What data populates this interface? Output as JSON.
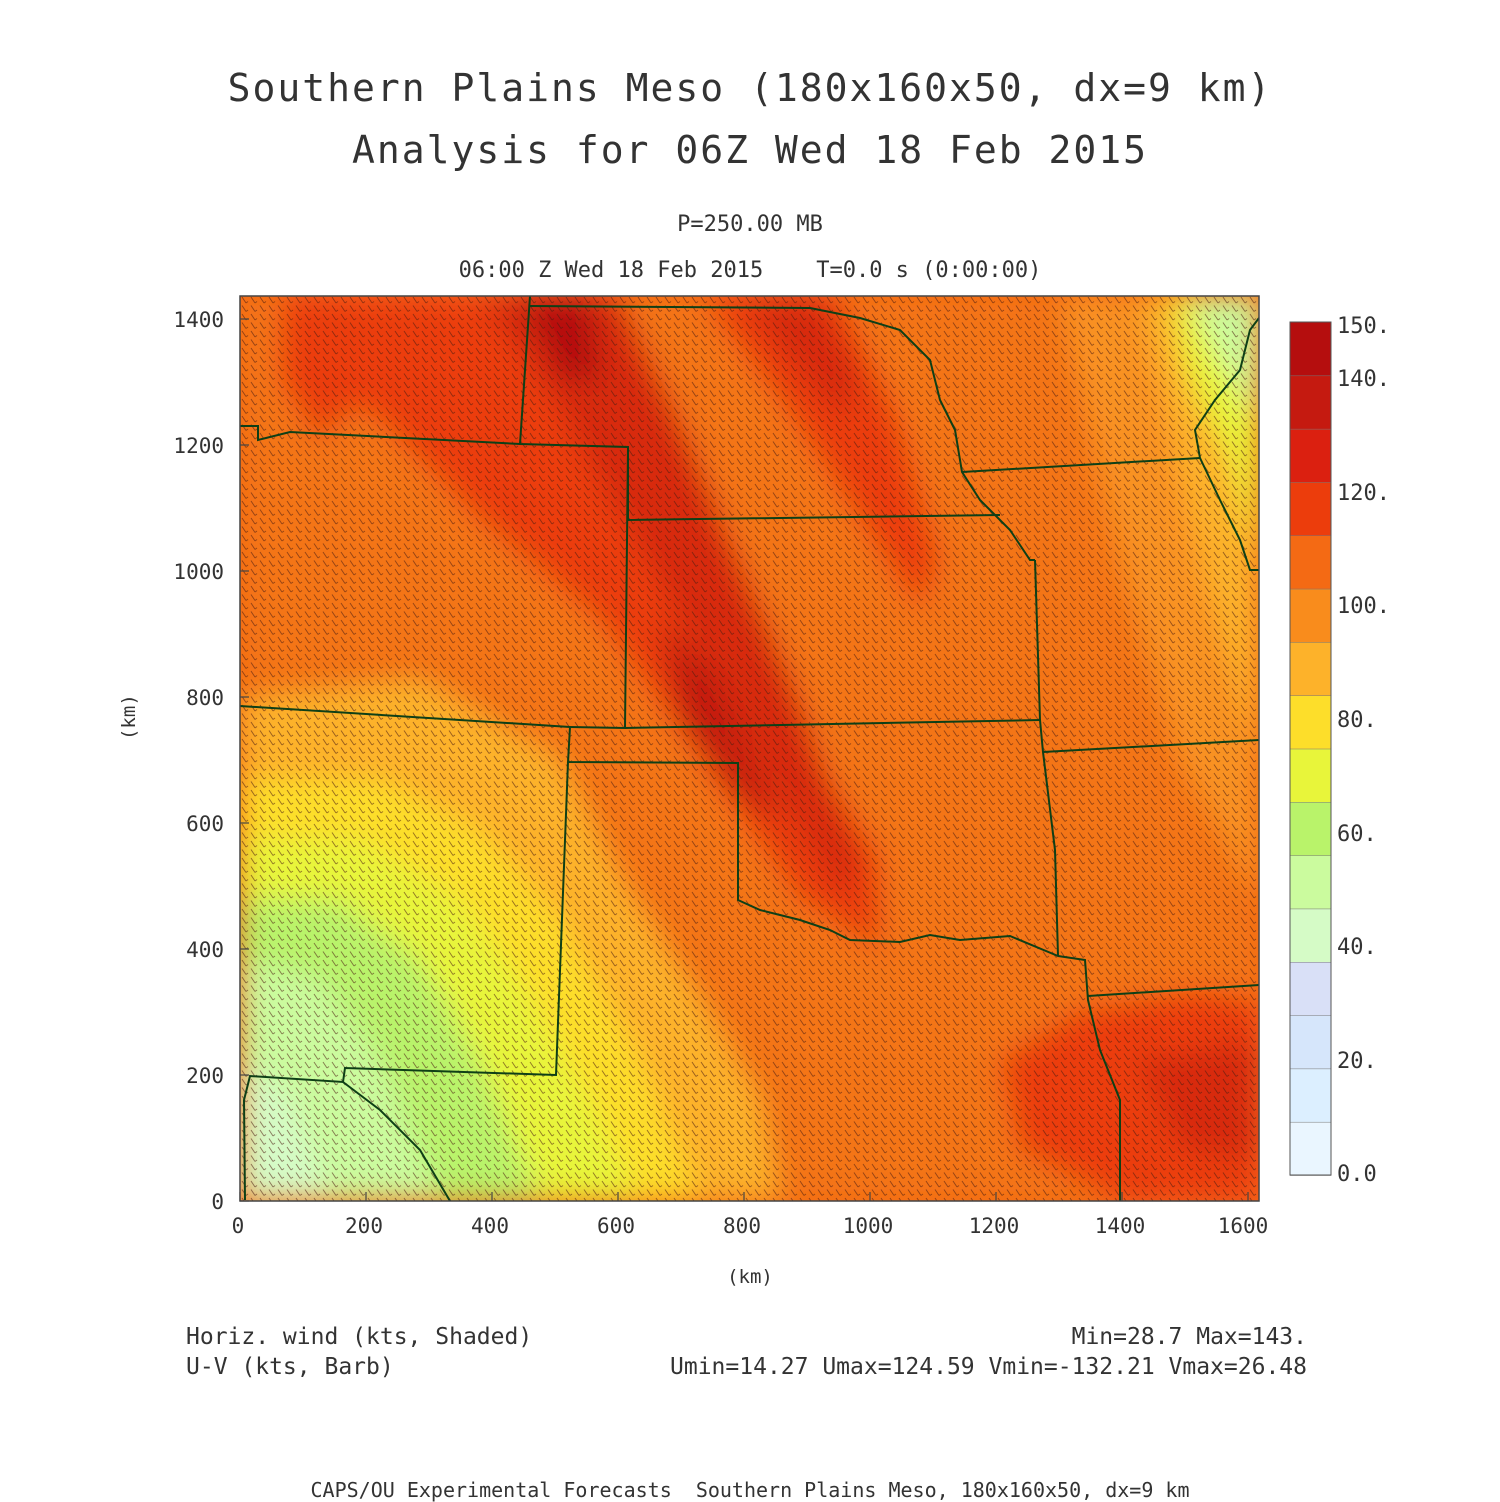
{
  "title": {
    "line1": "Southern Plains Meso (180x160x50, dx=9 km)",
    "line2": "Analysis for 06Z Wed 18 Feb 2015"
  },
  "level": "P=250.00 MB",
  "time_line": "06:00 Z Wed 18 Feb 2015    T=0.0 s (0:00:00)",
  "axes": {
    "x_label": "(km)",
    "y_label": "(km)",
    "x_ticks": [
      "0",
      "200",
      "400",
      "600",
      "800",
      "1000",
      "1200",
      "1400",
      "1600"
    ],
    "y_ticks": [
      "0",
      "200",
      "400",
      "600",
      "800",
      "1000",
      "1200",
      "1400"
    ],
    "x_range": [
      0,
      1620
    ],
    "y_range": [
      0,
      1440
    ]
  },
  "colorbar": {
    "labels": [
      "0.0",
      "20.",
      "40.",
      "60.",
      "80.",
      "100.",
      "120.",
      "140.",
      "150."
    ],
    "colors": [
      "#eaf6ff",
      "#dcefff",
      "#d6e6fb",
      "#d9e0f7",
      "#d5fbc6",
      "#cbfb9e",
      "#b9f36a",
      "#e8f53a",
      "#fdde2a",
      "#fdb22a",
      "#f98c1c",
      "#f46a14",
      "#ec3d0c",
      "#db2010",
      "#c51a10",
      "#b50e0e"
    ]
  },
  "legend": {
    "field1": "Horiz. wind (kts, Shaded)",
    "field2": "U-V (kts, Barb)",
    "stats1": "Min=28.7 Max=143.",
    "stats2": "Umin=14.27 Umax=124.59 Vmin=-132.21 Vmax=26.48"
  },
  "footer": "CAPS/OU Experimental Forecasts  Southern Plains Meso, 180x160x50, dx=9 km"
}
